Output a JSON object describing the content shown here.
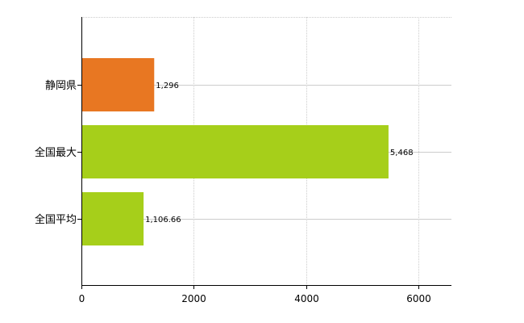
{
  "chart_data": {
    "type": "bar",
    "orientation": "horizontal",
    "categories": [
      "静岡県",
      "全国最大",
      "全国平均"
    ],
    "values": [
      1296,
      5468,
      1106.66
    ],
    "value_labels": [
      "1,296",
      "5,468",
      "1,106.66"
    ],
    "colors": [
      "#e87722",
      "#a6cf1a",
      "#a6cf1a"
    ],
    "xlim": [
      0,
      6000
    ],
    "xticks": [
      0,
      2000,
      4000,
      6000
    ],
    "xtick_labels": [
      "0",
      "2000",
      "4000",
      "6000"
    ],
    "grid": true,
    "legend": "none"
  }
}
